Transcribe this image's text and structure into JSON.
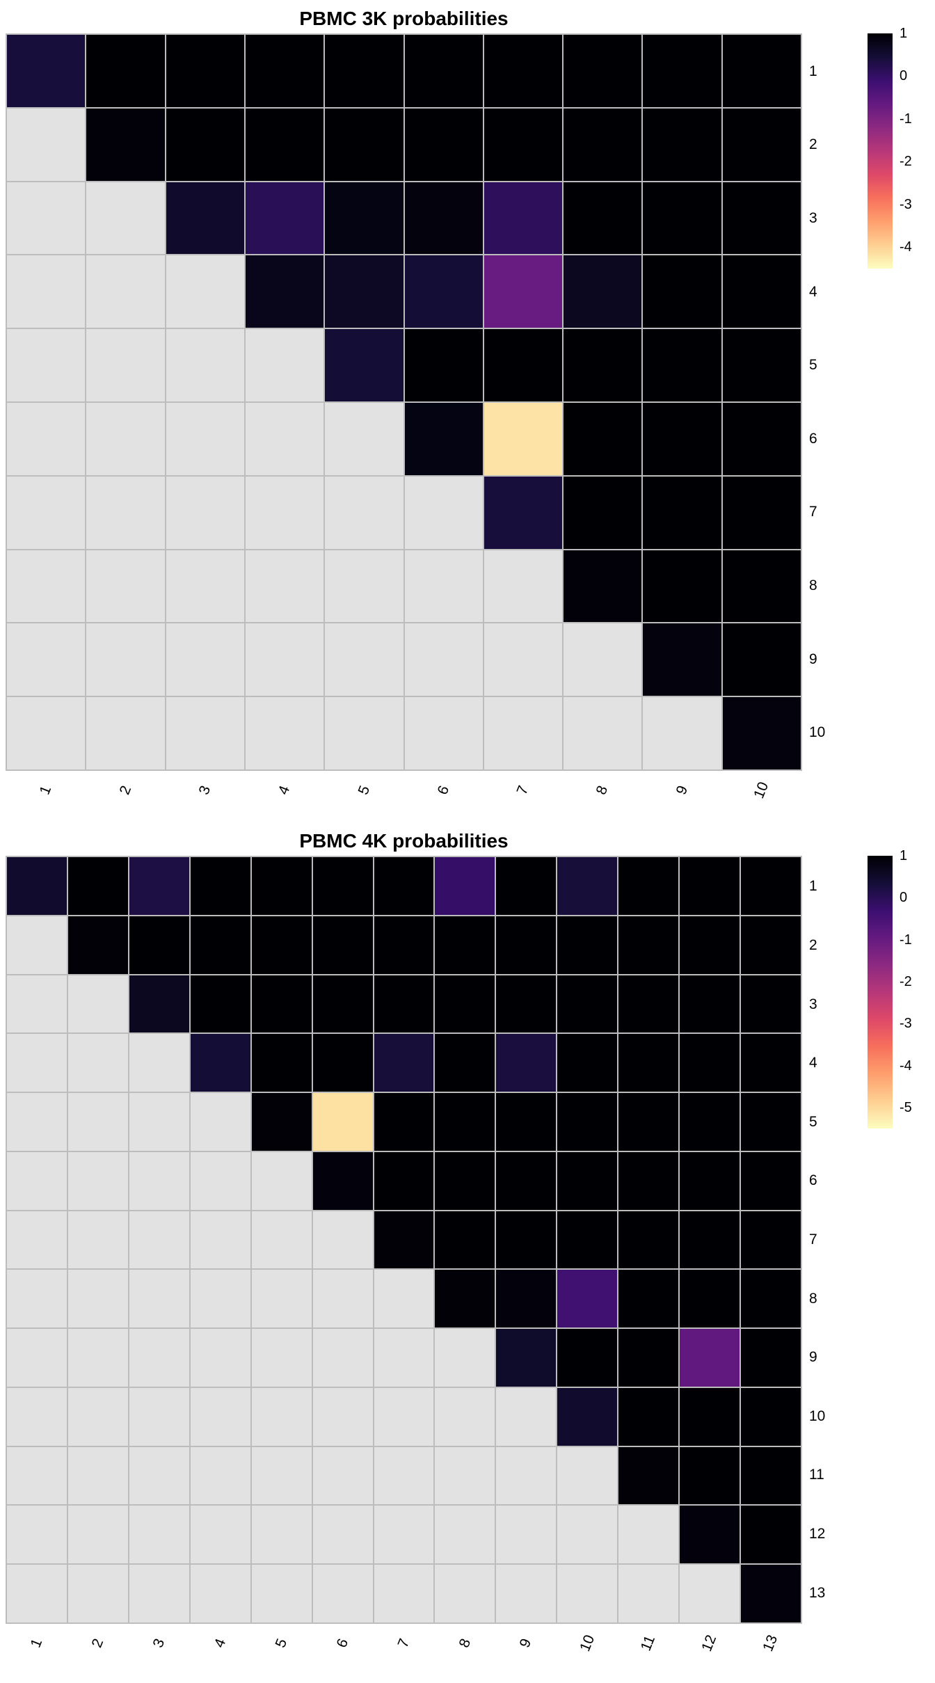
{
  "colormap": {
    "name": "magma-reversed-values",
    "stops": [
      "#000004",
      "#140e36",
      "#3b0f70",
      "#641a80",
      "#8c2981",
      "#b73779",
      "#de4968",
      "#f7705c",
      "#fe9f6d",
      "#fecf92",
      "#fcfdbf"
    ]
  },
  "colors": {
    "masked_cell": "#e2e2e2",
    "grid_line": "#bdbdbd",
    "background": "#ffffff"
  },
  "chart_data": [
    {
      "type": "heatmap",
      "title": "PBMC 3K probabilities",
      "rows": [
        "1",
        "2",
        "3",
        "4",
        "5",
        "6",
        "7",
        "8",
        "9",
        "10"
      ],
      "cols": [
        "1",
        "2",
        "3",
        "4",
        "5",
        "6",
        "7",
        "8",
        "9",
        "10"
      ],
      "vmax": 1,
      "vmin": -4.5,
      "colorbar_ticks": [
        1,
        0,
        -1,
        -2,
        -3,
        -4
      ],
      "legend_position": "right",
      "masked_region": "lower-triangle",
      "values": [
        [
          0.4,
          1,
          1,
          1,
          1,
          1,
          1,
          1,
          1,
          1
        ],
        [
          null,
          0.95,
          1,
          1,
          1,
          1,
          1,
          1,
          1,
          1
        ],
        [
          null,
          null,
          0.55,
          0.15,
          0.85,
          0.9,
          0.1,
          1,
          1,
          1
        ],
        [
          null,
          null,
          null,
          0.75,
          0.65,
          0.45,
          -0.7,
          0.7,
          1,
          1
        ],
        [
          null,
          null,
          null,
          null,
          0.45,
          1,
          1,
          1,
          1,
          1
        ],
        [
          null,
          null,
          null,
          null,
          null,
          0.85,
          -4.2,
          1,
          1,
          1
        ],
        [
          null,
          null,
          null,
          null,
          null,
          null,
          0.4,
          1,
          1,
          1
        ],
        [
          null,
          null,
          null,
          null,
          null,
          null,
          null,
          0.95,
          1,
          1
        ],
        [
          null,
          null,
          null,
          null,
          null,
          null,
          null,
          null,
          0.9,
          1
        ],
        [
          null,
          null,
          null,
          null,
          null,
          null,
          null,
          null,
          null,
          0.9
        ]
      ]
    },
    {
      "type": "heatmap",
      "title": "PBMC 4K probabilities",
      "rows": [
        "1",
        "2",
        "3",
        "4",
        "5",
        "6",
        "7",
        "8",
        "9",
        "10",
        "11",
        "12",
        "13"
      ],
      "cols": [
        "1",
        "2",
        "3",
        "4",
        "5",
        "6",
        "7",
        "8",
        "9",
        "10",
        "11",
        "12",
        "13"
      ],
      "vmax": 1,
      "vmin": -5.5,
      "colorbar_ticks": [
        1,
        0,
        -1,
        -2,
        -3,
        -4,
        -5
      ],
      "legend_position": "right",
      "masked_region": "lower-triangle",
      "values": [
        [
          0.45,
          1,
          0.2,
          1,
          1,
          1,
          1,
          -0.2,
          1,
          0.3,
          1,
          1,
          1
        ],
        [
          null,
          0.95,
          1,
          1,
          1,
          1,
          1,
          1,
          1,
          1,
          1,
          1,
          1
        ],
        [
          null,
          null,
          0.65,
          1,
          1,
          1,
          1,
          1,
          1,
          1,
          1,
          1,
          1
        ],
        [
          null,
          null,
          null,
          0.35,
          1,
          1,
          0.3,
          1,
          0.25,
          1,
          1,
          1,
          1
        ],
        [
          null,
          null,
          null,
          null,
          0.95,
          -5.1,
          1,
          1,
          1,
          1,
          1,
          1,
          1
        ],
        [
          null,
          null,
          null,
          null,
          null,
          0.9,
          1,
          1,
          1,
          1,
          1,
          1,
          1
        ],
        [
          null,
          null,
          null,
          null,
          null,
          null,
          0.95,
          1,
          1,
          1,
          1,
          1,
          1
        ],
        [
          null,
          null,
          null,
          null,
          null,
          null,
          null,
          0.95,
          0.9,
          -0.4,
          1,
          1,
          1
        ],
        [
          null,
          null,
          null,
          null,
          null,
          null,
          null,
          null,
          0.5,
          1,
          1,
          -0.9,
          1
        ],
        [
          null,
          null,
          null,
          null,
          null,
          null,
          null,
          null,
          null,
          0.45,
          1,
          1,
          1
        ],
        [
          null,
          null,
          null,
          null,
          null,
          null,
          null,
          null,
          null,
          null,
          0.95,
          1,
          1
        ],
        [
          null,
          null,
          null,
          null,
          null,
          null,
          null,
          null,
          null,
          null,
          null,
          0.9,
          1
        ],
        [
          null,
          null,
          null,
          null,
          null,
          null,
          null,
          null,
          null,
          null,
          null,
          null,
          0.9
        ]
      ]
    }
  ]
}
